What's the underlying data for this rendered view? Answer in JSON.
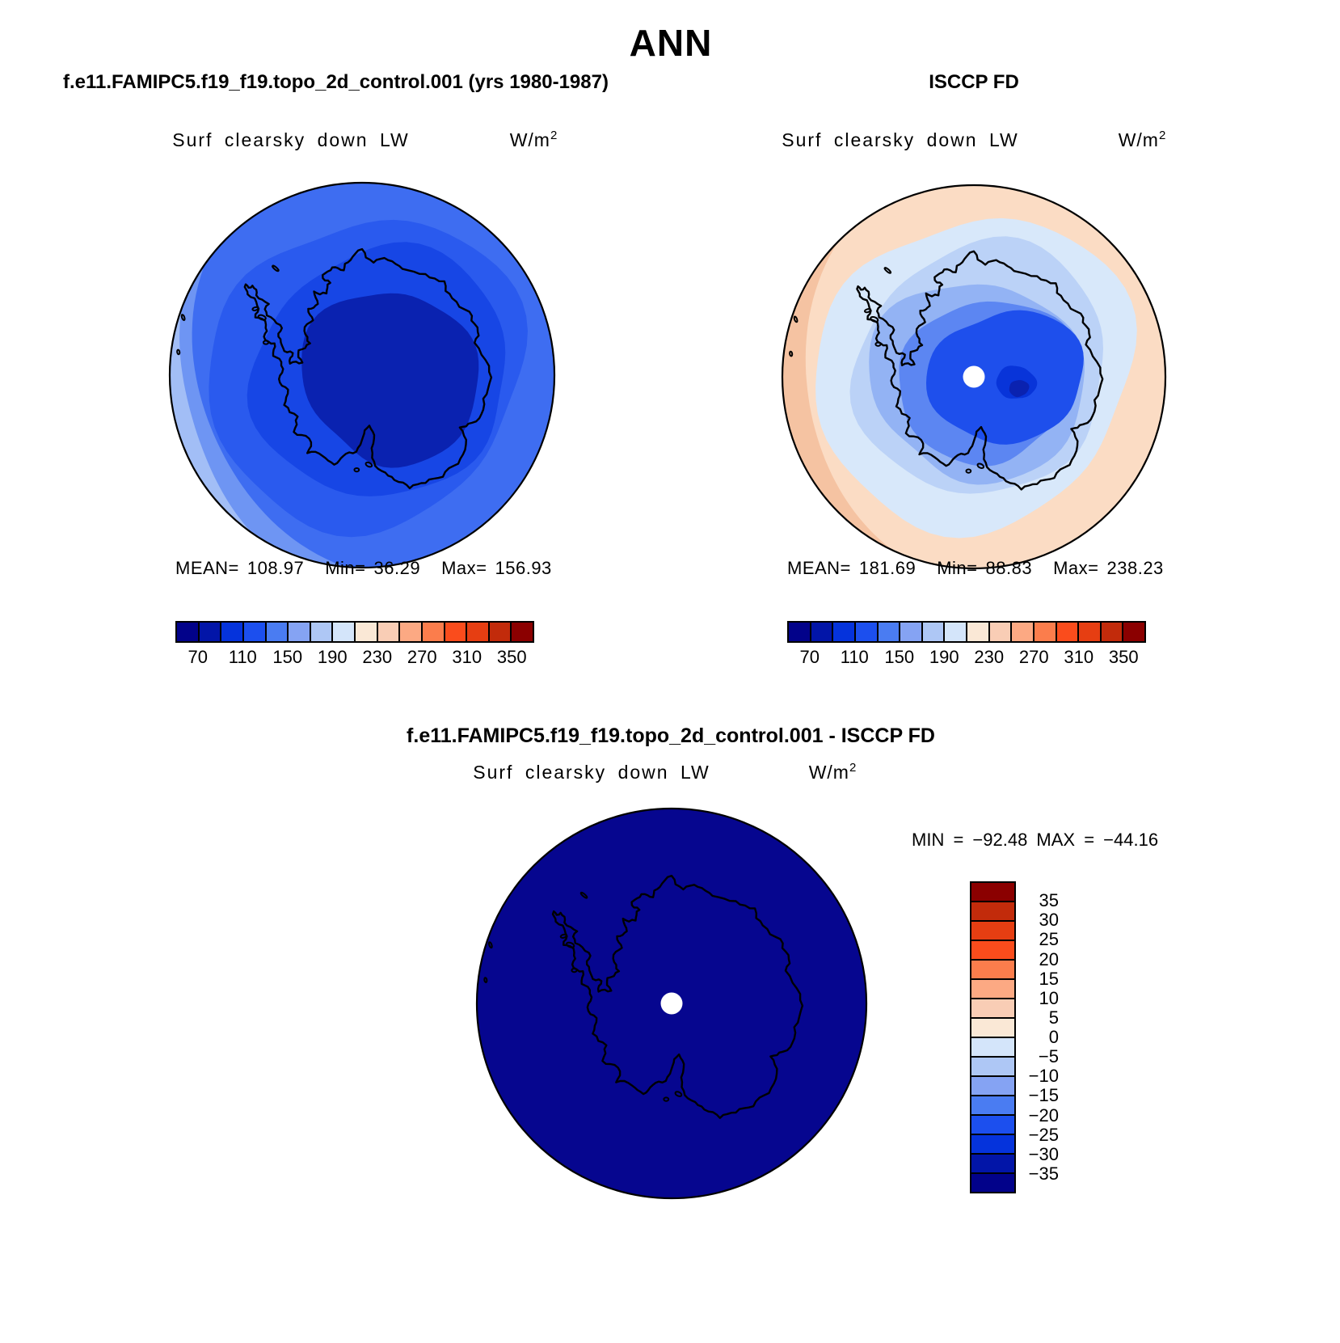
{
  "figure_title": "ANN",
  "panels": {
    "model": {
      "header": "f.e11.FAMIPC5.f19_f19.topo_2d_control.001 (yrs 1980-1987)",
      "var_title": "Surf clearsky down LW",
      "units": "W/m",
      "units_exp": "2",
      "stats": {
        "mean_label": "MEAN=",
        "mean": "108.97",
        "min_label": "Min=",
        "min": "36.29",
        "max_label": "Max=",
        "max": "156.93"
      },
      "ticks": [
        "70",
        "110",
        "150",
        "190",
        "230",
        "270",
        "310",
        "350"
      ]
    },
    "obs": {
      "header": "ISCCP FD",
      "var_title": "Surf clearsky down LW",
      "units": "W/m",
      "units_exp": "2",
      "stats": {
        "mean_label": "MEAN=",
        "mean": "181.69",
        "min_label": "Min=",
        "min": "88.83",
        "max_label": "Max=",
        "max": "238.23"
      },
      "ticks": [
        "70",
        "110",
        "150",
        "190",
        "230",
        "270",
        "310",
        "350"
      ]
    },
    "diff": {
      "header": "f.e11.FAMIPC5.f19_f19.topo_2d_control.001 - ISCCP FD",
      "var_title": "Surf clearsky down LW",
      "units": "W/m",
      "units_exp": "2",
      "minmax": "MIN  =  −92.48  MAX  =  −44.16",
      "cbar_labels": [
        "35",
        "30",
        "25",
        "20",
        "15",
        "10",
        "5",
        "0",
        "−5",
        "−10",
        "−15",
        "−20",
        "−25",
        "−30",
        "−35"
      ]
    }
  },
  "palette": [
    "#02028A",
    "#0215A8",
    "#0533DC",
    "#1C4FEE",
    "#4A7CF2",
    "#85A3F3",
    "#AEC7F5",
    "#D4E5FA",
    "#FAE8D6",
    "#F9CDB5",
    "#FCA983",
    "#FB7D4C",
    "#FA4C1C",
    "#E63E12",
    "#C22B0B",
    "#8B0000"
  ],
  "map_colors": {
    "model": {
      "base": "#3E6DF1",
      "band_w": "#6E95F3",
      "band_sw": "#A2BEF6",
      "mid": "#2A5AEE",
      "inner": "#1746E5",
      "plateau": "#0A22B0"
    },
    "obs": {
      "base": "#FBDCC4",
      "band_w": "#F5C3A2",
      "pale": "#D8E8FA",
      "light": "#BBD2F7",
      "mid": "#93B3F4",
      "strong": "#5C86F2",
      "core": "#1E4FEC",
      "dark": "#0834D9",
      "darkest": "#0A22B0"
    },
    "diff": {
      "fill": "#06068F"
    },
    "coast": "#000000",
    "pole_dot": "#FFFFFF"
  },
  "chart_data": [
    {
      "type": "heatmap",
      "subtype": "filled-contour south-polar stereographic map",
      "panel": "top-left",
      "source_label": "f.e11.FAMIPC5.f19_f19.topo_2d_control.001 (yrs 1980-1987)",
      "title": "Surf clearsky down LW",
      "units": "W/m2",
      "stats": {
        "mean": 108.97,
        "min": 36.29,
        "max": 156.93
      },
      "contour_levels": [
        70,
        90,
        110,
        130,
        150,
        170,
        190,
        210,
        230,
        250,
        270,
        290,
        310,
        330,
        350
      ],
      "colorbar_tick_labels": [
        70,
        110,
        150,
        190,
        230,
        270,
        310,
        350
      ],
      "legend_position": "horizontal below map",
      "description": "All-blue field; darkest blue over East Antarctic plateau, brightening outward to light blue at the western map edge."
    },
    {
      "type": "heatmap",
      "subtype": "filled-contour south-polar stereographic map",
      "panel": "top-right",
      "source_label": "ISCCP FD",
      "title": "Surf clearsky down LW",
      "units": "W/m2",
      "stats": {
        "mean": 181.69,
        "min": 88.83,
        "max": 238.23
      },
      "contour_levels": [
        70,
        90,
        110,
        130,
        150,
        170,
        190,
        210,
        230,
        250,
        270,
        290,
        310,
        330,
        350
      ],
      "colorbar_tick_labels": [
        70,
        110,
        150,
        190,
        230,
        270,
        310,
        350
      ],
      "legend_position": "horizontal below map",
      "description": "Peach/orange ring at map edge grading through pale blues to strong blue over the Antarctic interior; white missing-data dot at pole."
    },
    {
      "type": "heatmap",
      "subtype": "filled-contour south-polar stereographic difference map",
      "panel": "bottom",
      "source_label": "f.e11.FAMIPC5.f19_f19.topo_2d_control.001 - ISCCP FD",
      "title": "Surf clearsky down LW",
      "units": "W/m2",
      "stats": {
        "min": -92.48,
        "max": -44.16
      },
      "contour_levels": [
        -35,
        -30,
        -25,
        -20,
        -15,
        -10,
        -5,
        0,
        5,
        10,
        15,
        20,
        25,
        30,
        35
      ],
      "colorbar_tick_labels": [
        35,
        30,
        25,
        20,
        15,
        10,
        5,
        0,
        -5,
        -10,
        -15,
        -20,
        -25,
        -30,
        -35
      ],
      "legend_position": "vertical right of map",
      "description": "Uniform darkest-blue field (entire domain below -35 W/m2); white missing-data dot at pole."
    }
  ]
}
